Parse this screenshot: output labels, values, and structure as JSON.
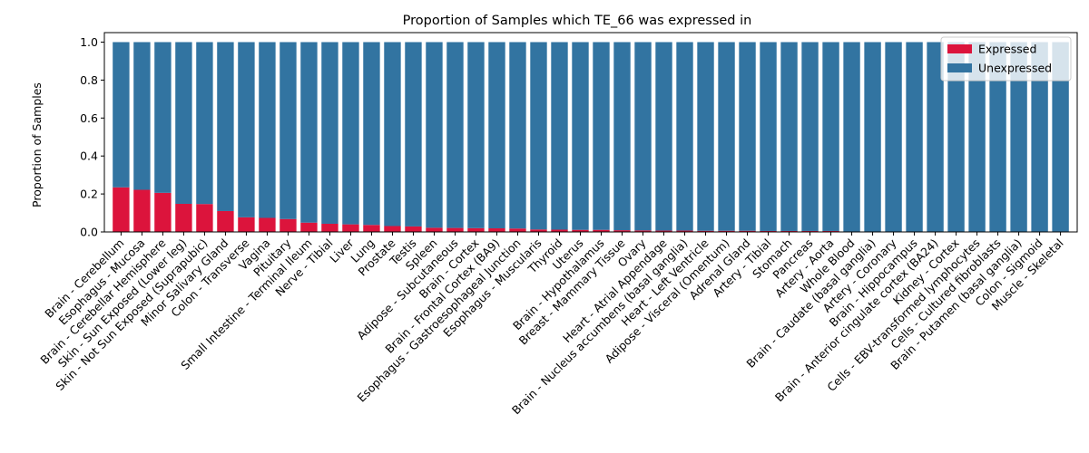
{
  "chart_data": {
    "type": "bar",
    "stacked": true,
    "title": "Proportion of Samples which TE_66 was expressed in",
    "xlabel": "",
    "ylabel": "Proportion of Samples",
    "ylim": [
      0,
      1.05
    ],
    "yticks": [
      "0.0",
      "0.2",
      "0.4",
      "0.6",
      "0.8",
      "1.0"
    ],
    "legend_position": "top-right",
    "grid": false,
    "categories": [
      "Brain - Cerebellum",
      "Esophagus - Mucosa",
      "Brain - Cerebellar Hemisphere",
      "Skin - Sun Exposed (Lower leg)",
      "Skin - Not Sun Exposed (Suprapubic)",
      "Minor Salivary Gland",
      "Colon - Transverse",
      "Vagina",
      "Pituitary",
      "Small Intestine - Terminal Ileum",
      "Nerve - Tibial",
      "Liver",
      "Lung",
      "Prostate",
      "Testis",
      "Spleen",
      "Adipose - Subcutaneous",
      "Brain - Cortex",
      "Brain - Frontal Cortex (BA9)",
      "Esophagus - Gastroesophageal Junction",
      "Esophagus - Muscularis",
      "Thyroid",
      "Uterus",
      "Brain - Hypothalamus",
      "Breast - Mammary Tissue",
      "Ovary",
      "Heart - Atrial Appendage",
      "Brain - Nucleus accumbens (basal ganglia)",
      "Heart - Left Ventricle",
      "Adipose - Visceral (Omentum)",
      "Adrenal Gland",
      "Artery - Tibial",
      "Stomach",
      "Pancreas",
      "Artery - Aorta",
      "Whole Blood",
      "Brain - Caudate (basal ganglia)",
      "Artery - Coronary",
      "Brain - Hippocampus",
      "Brain - Anterior cingulate cortex (BA24)",
      "Kidney - Cortex",
      "Cells - EBV-transformed lymphocytes",
      "Cells - Cultured fibroblasts",
      "Brain - Putamen (basal ganglia)",
      "Colon - Sigmoid",
      "Muscle - Skeletal"
    ],
    "series": [
      {
        "name": "Expressed",
        "color": "#dc143c",
        "values": [
          0.235,
          0.222,
          0.206,
          0.148,
          0.147,
          0.11,
          0.077,
          0.074,
          0.068,
          0.049,
          0.043,
          0.04,
          0.037,
          0.031,
          0.029,
          0.022,
          0.021,
          0.02,
          0.019,
          0.018,
          0.013,
          0.012,
          0.011,
          0.011,
          0.009,
          0.008,
          0.007,
          0.007,
          0.006,
          0.006,
          0.006,
          0.005,
          0.005,
          0.005,
          0.005,
          0.0,
          0.0,
          0.0,
          0.0,
          0.0,
          0.0,
          0.0,
          0.0,
          0.0,
          0.0,
          0.0
        ]
      },
      {
        "name": "Unexpressed",
        "color": "#3274a1",
        "values": [
          0.765,
          0.778,
          0.794,
          0.852,
          0.853,
          0.89,
          0.923,
          0.926,
          0.932,
          0.951,
          0.957,
          0.96,
          0.963,
          0.969,
          0.971,
          0.978,
          0.979,
          0.98,
          0.981,
          0.982,
          0.987,
          0.988,
          0.989,
          0.989,
          0.991,
          0.992,
          0.993,
          0.993,
          0.994,
          0.994,
          0.994,
          0.995,
          0.995,
          0.995,
          0.995,
          1.0,
          1.0,
          1.0,
          1.0,
          1.0,
          1.0,
          1.0,
          1.0,
          1.0,
          1.0,
          1.0
        ]
      }
    ]
  }
}
